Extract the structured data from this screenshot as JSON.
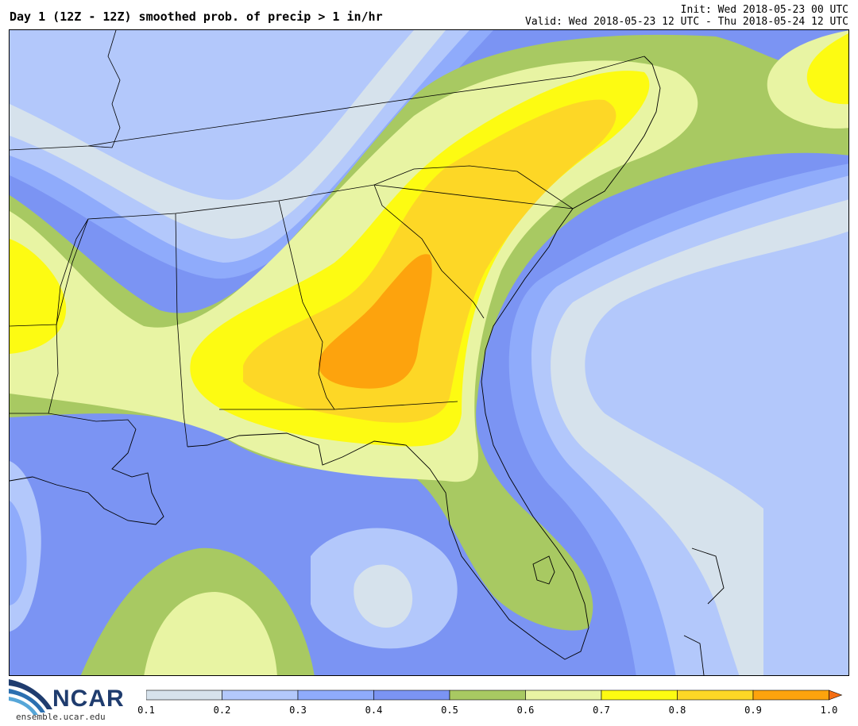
{
  "header": {
    "title": "Day 1 (12Z - 12Z) smoothed prob. of precip > 1 in/hr",
    "init": "Init: Wed 2018-05-23 00 UTC",
    "valid": "Valid: Wed 2018-05-23 12 UTC - Thu 2018-05-24 12 UTC"
  },
  "logo": {
    "name": "NCAR",
    "url": "ensemble.ucar.edu"
  },
  "colorbar": {
    "levels": [
      "0.1",
      "0.2",
      "0.3",
      "0.4",
      "0.5",
      "0.6",
      "0.7",
      "0.8",
      "0.9",
      "1.0"
    ],
    "colors": [
      "#d6e2ec",
      "#b3c8fb",
      "#8fabfb",
      "#7b94f3",
      "#a8c962",
      "#e8f4a3",
      "#fdfb12",
      "#fdd726",
      "#fda30d"
    ],
    "extend_color": "#f46d13"
  },
  "map": {
    "region": "Southeastern United States",
    "field": "smoothed probability of precipitation > 1 in/hr",
    "max_center_state": "Georgia"
  }
}
